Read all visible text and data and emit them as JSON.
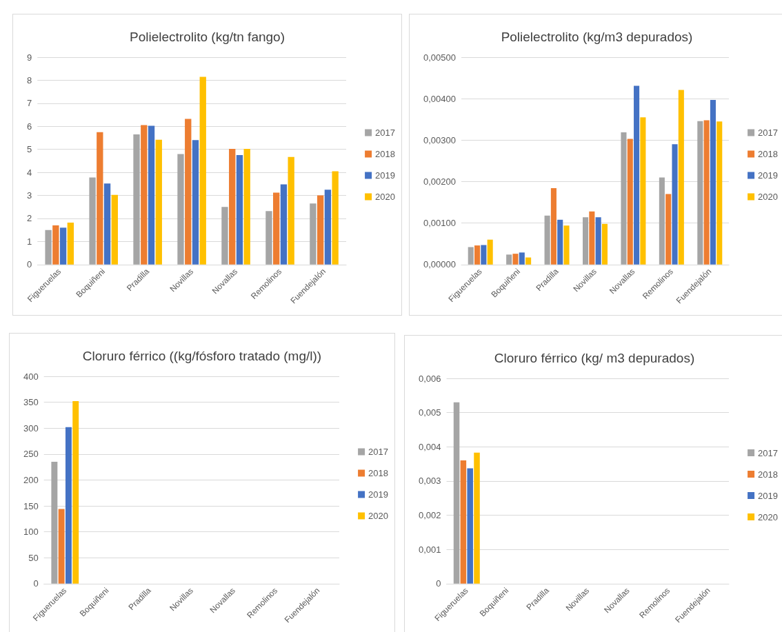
{
  "chart_data": [
    {
      "type": "bar",
      "title": "Polielectrolito (kg/tn fango)",
      "categories": [
        "Figueruelas",
        "Boquiñeni",
        "Pradilla",
        "Novillas",
        "Novallas",
        "Remolinos",
        "Fuendejalón"
      ],
      "series": [
        {
          "name": "2017",
          "color": "#a5a5a5",
          "values": [
            1.5,
            3.78,
            5.65,
            4.8,
            2.5,
            2.32,
            2.65
          ]
        },
        {
          "name": "2018",
          "color": "#ed7d31",
          "values": [
            1.7,
            5.75,
            6.05,
            6.32,
            5.02,
            3.12,
            3.0
          ]
        },
        {
          "name": "2019",
          "color": "#4472c4",
          "values": [
            1.6,
            3.52,
            6.02,
            5.4,
            4.75,
            3.48,
            3.25
          ]
        },
        {
          "name": "2020",
          "color": "#ffc000",
          "values": [
            1.82,
            3.02,
            5.42,
            8.15,
            5.02,
            4.67,
            4.05
          ]
        }
      ],
      "ylim": [
        0,
        9
      ],
      "yticks": [
        0,
        1,
        2,
        3,
        4,
        5,
        6,
        7,
        8,
        9
      ],
      "grid": "y",
      "legend": "right"
    },
    {
      "type": "bar",
      "title": "Polielectrolito (kg/m3 depurados)",
      "categories": [
        "Figueruelas",
        "Boquiñeni",
        "Pradilla",
        "Novillas",
        "Novallas",
        "Remolinos",
        "Fuendejalón"
      ],
      "series": [
        {
          "name": "2017",
          "color": "#a5a5a5",
          "values": [
            0.00042,
            0.00024,
            0.00118,
            0.00114,
            0.00319,
            0.0021,
            0.00346
          ]
        },
        {
          "name": "2018",
          "color": "#ed7d31",
          "values": [
            0.00046,
            0.00026,
            0.00184,
            0.00128,
            0.00303,
            0.0017,
            0.00348
          ]
        },
        {
          "name": "2019",
          "color": "#4472c4",
          "values": [
            0.00047,
            0.00029,
            0.00108,
            0.00114,
            0.00431,
            0.0029,
            0.00397
          ]
        },
        {
          "name": "2020",
          "color": "#ffc000",
          "values": [
            0.0006,
            0.00017,
            0.00094,
            0.00098,
            0.00355,
            0.00421,
            0.00345
          ]
        }
      ],
      "ylim": [
        0,
        0.005
      ],
      "yticks": [
        {
          "value": 0,
          "label": "0,00000"
        },
        {
          "value": 0.001,
          "label": "0,00100"
        },
        {
          "value": 0.002,
          "label": "0,00200"
        },
        {
          "value": 0.003,
          "label": "0,00300"
        },
        {
          "value": 0.004,
          "label": "0,00400"
        },
        {
          "value": 0.005,
          "label": "0,00500"
        }
      ],
      "grid": "y",
      "legend": "right"
    },
    {
      "type": "bar",
      "title": "Cloruro férrico ((kg/fósforo tratado (mg/l))",
      "categories": [
        "Figueruelas",
        "Boquiñeni",
        "Pradilla",
        "Novillas",
        "Novallas",
        "Remolinos",
        "Fuendejalón"
      ],
      "series": [
        {
          "name": "2017",
          "color": "#a5a5a5",
          "values": [
            235,
            null,
            null,
            null,
            null,
            null,
            null
          ]
        },
        {
          "name": "2018",
          "color": "#ed7d31",
          "values": [
            144,
            null,
            null,
            null,
            null,
            null,
            null
          ]
        },
        {
          "name": "2019",
          "color": "#4472c4",
          "values": [
            302,
            null,
            null,
            null,
            null,
            null,
            null
          ]
        },
        {
          "name": "2020",
          "color": "#ffc000",
          "values": [
            352,
            null,
            null,
            null,
            null,
            null,
            null
          ]
        }
      ],
      "ylim": [
        0,
        400
      ],
      "yticks": [
        0,
        50,
        100,
        150,
        200,
        250,
        300,
        350,
        400
      ],
      "grid": "y",
      "legend": "right"
    },
    {
      "type": "bar",
      "title": "Cloruro férrico (kg/ m3 depurados)",
      "categories": [
        "Figueruelas",
        "Boquiñeni",
        "Pradilla",
        "Novillas",
        "Novallas",
        "Remolinos",
        "Fuendejalón"
      ],
      "series": [
        {
          "name": "2017",
          "color": "#a5a5a5",
          "values": [
            0.0053,
            null,
            null,
            null,
            null,
            null,
            null
          ]
        },
        {
          "name": "2018",
          "color": "#ed7d31",
          "values": [
            0.0036,
            null,
            null,
            null,
            null,
            null,
            null
          ]
        },
        {
          "name": "2019",
          "color": "#4472c4",
          "values": [
            0.00337,
            null,
            null,
            null,
            null,
            null,
            null
          ]
        },
        {
          "name": "2020",
          "color": "#ffc000",
          "values": [
            0.00383,
            null,
            null,
            null,
            null,
            null,
            null
          ]
        }
      ],
      "ylim": [
        0,
        0.006
      ],
      "yticks": [
        0,
        {
          "value": 0.001,
          "label": "0,001"
        },
        {
          "value": 0.002,
          "label": "0,002"
        },
        {
          "value": 0.003,
          "label": "0,003"
        },
        {
          "value": 0.004,
          "label": "0,004"
        },
        {
          "value": 0.005,
          "label": "0,005"
        },
        {
          "value": 0.006,
          "label": "0,006"
        }
      ],
      "grid": "y",
      "legend": "right"
    }
  ]
}
